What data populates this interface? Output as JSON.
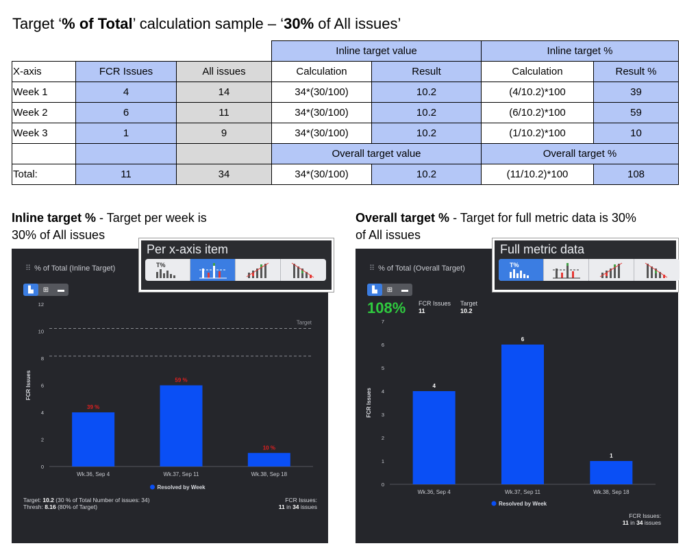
{
  "header": {
    "title_prefix": "Target ‘",
    "title_bold1": "% of Total",
    "title_mid": "’ calculation sample – ‘",
    "title_bold2": "30%",
    "title_suffix": " of All issues’"
  },
  "table": {
    "group_headers": {
      "inline_value": "Inline target value",
      "inline_pct": "Inline target %",
      "overall_value": "Overall target value",
      "overall_pct": "Overall target %"
    },
    "columns": [
      "X-axis",
      "FCR Issues",
      "All issues",
      "Calculation",
      "Result",
      "Calculation",
      "Result %"
    ],
    "rows": [
      [
        "Week 1",
        "4",
        "14",
        "34*(30/100)",
        "10.2",
        "(4/10.2)*100",
        "39"
      ],
      [
        "Week 2",
        "6",
        "11",
        "34*(30/100)",
        "10.2",
        "(6/10.2)*100",
        "59"
      ],
      [
        "Week 3",
        "1",
        "9",
        "34*(30/100)",
        "10.2",
        "(1/10.2)*100",
        "10"
      ]
    ],
    "total_row": [
      "Total:",
      "11",
      "34",
      "34*(30/100)",
      "10.2",
      "(11/10.2)*100",
      "108"
    ]
  },
  "left_caption": {
    "bold": "Inline target %",
    "text": " - Target per week is",
    "line2": "30% of All issues"
  },
  "right_caption": {
    "bold": "Overall target %",
    "text": " - Target for full metric data is 30%",
    "line2": "of All issues"
  },
  "left_panel": {
    "title": "% of Total (Inline Target)",
    "popup_label": "Per x-axis item",
    "target_label": "Target",
    "footer_left_line1_prefix": "Target: ",
    "footer_left_line1_bold": "10.2",
    "footer_left_line1_suffix": " (30 % of Total Number of issues: 34)",
    "footer_left_line2_prefix": "Thresh: ",
    "footer_left_line2_bold": "8.16",
    "footer_left_line2_suffix": " (80% of Target)",
    "footer_right_line1": "FCR Issues:",
    "footer_right_bold1": "11",
    "footer_right_mid": " in ",
    "footer_right_bold2": "34",
    "footer_right_suffix": " issues"
  },
  "right_panel": {
    "title": "% of Total (Overall Target)",
    "popup_label": "Full metric data",
    "kpi_value": "108%",
    "kpi_label1": "FCR Issues",
    "kpi_value1": "11",
    "kpi_label2": "Target",
    "kpi_value2": "10.2",
    "footer_right_line1": "FCR Issues:",
    "footer_right_bold1": "11",
    "footer_right_mid": " in ",
    "footer_right_bold2": "34",
    "footer_right_suffix": " issues"
  },
  "colors": {
    "bar": "#0a4ff5",
    "pct_label": "#e02020",
    "panel_bg": "#25262b",
    "kpi_green": "#2fcb3f",
    "grid": "#55575d"
  },
  "chart_data": [
    {
      "type": "bar",
      "title": "% of Total (Inline Target)",
      "categories": [
        "Wk.36, Sep 4",
        "Wk.37, Sep 11",
        "Wk.38, Sep 18"
      ],
      "values": [
        4,
        6,
        1
      ],
      "bar_labels": [
        "39 %",
        "59 %",
        "10 %"
      ],
      "series_name": "Resolved by Week",
      "ylabel": "FCR Issues",
      "yticks": [
        "0",
        "2",
        "4",
        "6",
        "8",
        "10",
        "12"
      ],
      "ylim": [
        0,
        12
      ],
      "target_line": 10.2,
      "threshold_line": 8.16
    },
    {
      "type": "bar",
      "title": "% of Total (Overall Target)",
      "categories": [
        "Wk.36, Sep 4",
        "Wk.37, Sep 11",
        "Wk.38, Sep 18"
      ],
      "values": [
        4,
        6,
        1
      ],
      "bar_labels": [
        "4",
        "6",
        "1"
      ],
      "series_name": "Resolved by Week",
      "ylabel": "FCR Issues",
      "yticks": [
        "0",
        "1",
        "2",
        "3",
        "4",
        "5",
        "6",
        "7"
      ],
      "ylim": [
        0,
        7
      ]
    }
  ]
}
